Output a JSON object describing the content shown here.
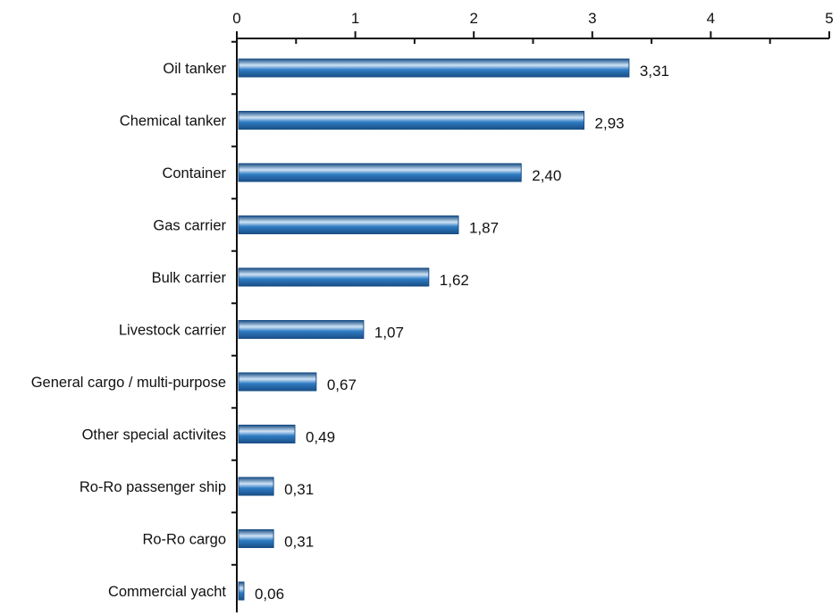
{
  "chart_data": {
    "type": "bar",
    "orientation": "horizontal",
    "categories": [
      "Oil tanker",
      "Chemical tanker",
      "Container",
      "Gas carrier",
      "Bulk carrier",
      "Livestock carrier",
      "General cargo / multi-purpose",
      "Other special activites",
      "Ro-Ro passenger ship",
      "Ro-Ro cargo",
      "Commercial yacht"
    ],
    "values": [
      3.31,
      2.93,
      2.4,
      1.87,
      1.62,
      1.07,
      0.67,
      0.49,
      0.31,
      0.31,
      0.06
    ],
    "value_labels": [
      "3,31",
      "2,93",
      "2,40",
      "1,87",
      "1,62",
      "1,07",
      "0,67",
      "0,49",
      "0,31",
      "0,31",
      "0,06"
    ],
    "xticks": [
      "0",
      "1",
      "2",
      "3",
      "4",
      "5"
    ],
    "xlim": [
      0,
      5
    ],
    "xaxis_position": "top",
    "title": "",
    "xlabel": "",
    "ylabel": "",
    "grid": false,
    "legend": "none",
    "bar_color": "#2f7cc4",
    "bar_highlight": "#cfe3f6",
    "bar_outline": "#1a4f86"
  }
}
